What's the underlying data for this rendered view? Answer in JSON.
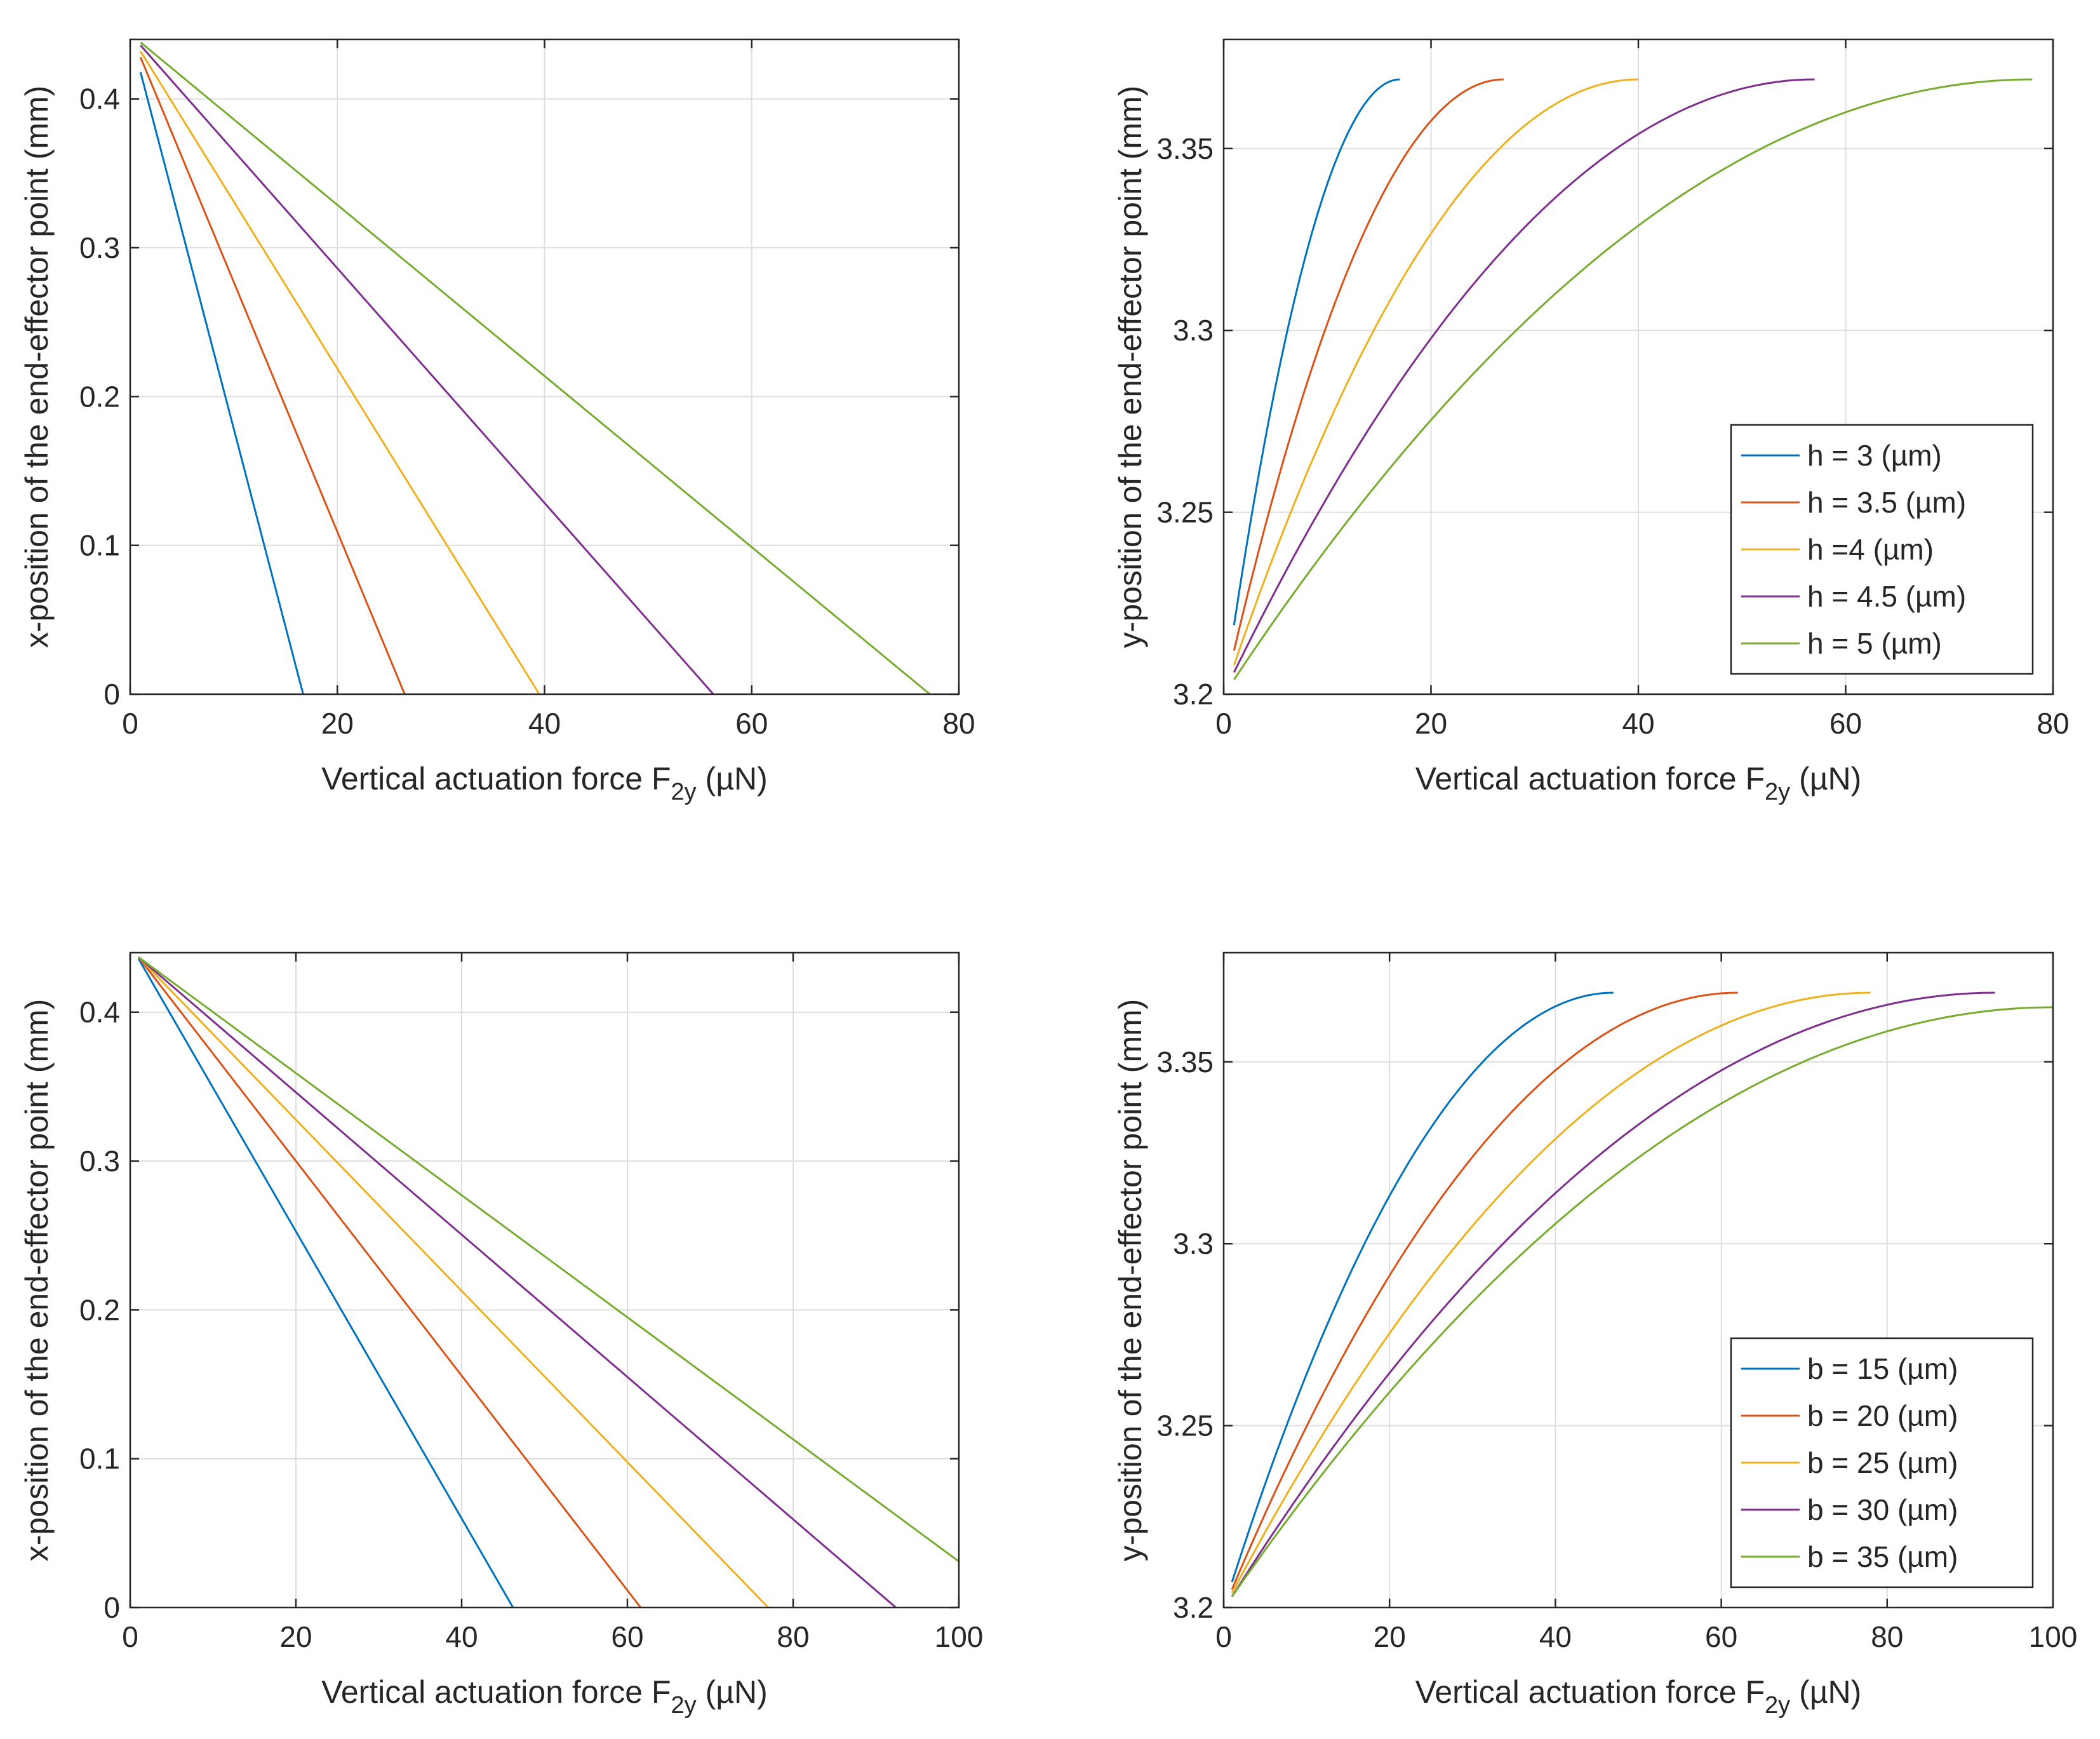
{
  "chart_data": [
    {
      "type": "line",
      "xlabel": "Vertical actuation force F",
      "xlabel_sub": "2y",
      "xlabel_unit": "(µN)",
      "ylabel": "x-position of the end-effector point (mm)",
      "xlim": [
        0,
        80
      ],
      "ylim": [
        0,
        0.44
      ],
      "xticks": [
        0,
        20,
        40,
        60,
        80
      ],
      "yticks": [
        0,
        0.1,
        0.2,
        0.3,
        0.4
      ],
      "xtick_labels": [
        "0",
        "20",
        "40",
        "60",
        "80"
      ],
      "ytick_labels": [
        "0",
        "0.1",
        "0.2",
        "0.3",
        "0.4"
      ],
      "grid": true,
      "legend": null,
      "series": [
        {
          "name": "h = 3 (µm)",
          "color": "#0072BD",
          "x": [
            1,
            16.7
          ],
          "y": [
            0.418,
            0
          ],
          "shape": "linear"
        },
        {
          "name": "h = 3.5 (µm)",
          "color": "#D95319",
          "x": [
            1,
            26.5
          ],
          "y": [
            0.428,
            0
          ],
          "shape": "linear"
        },
        {
          "name": "h =4 (µm)",
          "color": "#EDB120",
          "x": [
            1,
            39.5
          ],
          "y": [
            0.432,
            0
          ],
          "shape": "linear"
        },
        {
          "name": "h = 4.5 (µm)",
          "color": "#7E2F8E",
          "x": [
            1,
            56.3
          ],
          "y": [
            0.436,
            0
          ],
          "shape": "linear"
        },
        {
          "name": "h = 5 (µm)",
          "color": "#77AC30",
          "x": [
            1,
            77.2
          ],
          "y": [
            0.438,
            0
          ],
          "shape": "linear"
        }
      ]
    },
    {
      "type": "line",
      "xlabel": "Vertical actuation force F",
      "xlabel_sub": "2y",
      "xlabel_unit": "(µN)",
      "ylabel": "y-position of the end-effector point (mm)",
      "xlim": [
        0,
        80
      ],
      "ylim": [
        3.2,
        3.38
      ],
      "xticks": [
        0,
        20,
        40,
        60,
        80
      ],
      "yticks": [
        3.2,
        3.25,
        3.3,
        3.35
      ],
      "xtick_labels": [
        "0",
        "20",
        "40",
        "60",
        "80"
      ],
      "ytick_labels": [
        "3.2",
        "3.25",
        "3.3",
        "3.35"
      ],
      "grid": true,
      "legend": "bottom-right",
      "series": [
        {
          "name": "h = 3 (µm)",
          "color": "#0072BD",
          "x": [
            1,
            17
          ],
          "y": [
            3.219,
            3.369
          ],
          "shape": "concave"
        },
        {
          "name": "h = 3.5 (µm)",
          "color": "#D95319",
          "x": [
            1,
            27
          ],
          "y": [
            3.212,
            3.369
          ],
          "shape": "concave"
        },
        {
          "name": "h =4 (µm)",
          "color": "#EDB120",
          "x": [
            1,
            40
          ],
          "y": [
            3.208,
            3.369
          ],
          "shape": "concave"
        },
        {
          "name": "h = 4.5 (µm)",
          "color": "#7E2F8E",
          "x": [
            1,
            57
          ],
          "y": [
            3.206,
            3.369
          ],
          "shape": "concave"
        },
        {
          "name": "h = 5 (µm)",
          "color": "#77AC30",
          "x": [
            1,
            78
          ],
          "y": [
            3.204,
            3.369
          ],
          "shape": "concave"
        }
      ]
    },
    {
      "type": "line",
      "xlabel": "Vertical actuation force F",
      "xlabel_sub": "2y",
      "xlabel_unit": "(µN)",
      "ylabel": "x-position of the end-effector point (mm)",
      "xlim": [
        0,
        100
      ],
      "ylim": [
        0,
        0.44
      ],
      "xticks": [
        0,
        20,
        40,
        60,
        80,
        100
      ],
      "yticks": [
        0,
        0.1,
        0.2,
        0.3,
        0.4
      ],
      "xtick_labels": [
        "0",
        "20",
        "40",
        "60",
        "80",
        "100"
      ],
      "ytick_labels": [
        "0",
        "0.1",
        "0.2",
        "0.3",
        "0.4"
      ],
      "grid": true,
      "legend": null,
      "series": [
        {
          "name": "b = 15 (µm)",
          "color": "#0072BD",
          "x": [
            1,
            46.2
          ],
          "y": [
            0.436,
            0
          ],
          "shape": "linear"
        },
        {
          "name": "b = 20 (µm)",
          "color": "#D95319",
          "x": [
            1,
            61.6
          ],
          "y": [
            0.437,
            0
          ],
          "shape": "linear"
        },
        {
          "name": "b = 25 (µm)",
          "color": "#EDB120",
          "x": [
            1,
            77
          ],
          "y": [
            0.437,
            0
          ],
          "shape": "linear"
        },
        {
          "name": "b = 30 (µm)",
          "color": "#7E2F8E",
          "x": [
            1,
            92.4
          ],
          "y": [
            0.437,
            0
          ],
          "shape": "linear"
        },
        {
          "name": "b = 35 (µm)",
          "color": "#77AC30",
          "x": [
            1,
            100
          ],
          "y": [
            0.437,
            0.031
          ],
          "shape": "linear"
        }
      ]
    },
    {
      "type": "line",
      "xlabel": "Vertical actuation force F",
      "xlabel_sub": "2y",
      "xlabel_unit": "(µN)",
      "ylabel": "y-position of the end-effector point (mm)",
      "xlim": [
        0,
        100
      ],
      "ylim": [
        3.2,
        3.38
      ],
      "xticks": [
        0,
        20,
        40,
        60,
        80,
        100
      ],
      "yticks": [
        3.2,
        3.25,
        3.3,
        3.35
      ],
      "xtick_labels": [
        "0",
        "20",
        "40",
        "60",
        "80",
        "100"
      ],
      "ytick_labels": [
        "3.2",
        "3.25",
        "3.3",
        "3.35"
      ],
      "grid": true,
      "legend": "bottom-right",
      "series": [
        {
          "name": "b = 15 (µm)",
          "color": "#0072BD",
          "x": [
            1,
            47
          ],
          "y": [
            3.207,
            3.369
          ],
          "shape": "concave"
        },
        {
          "name": "b = 20 (µm)",
          "color": "#D95319",
          "x": [
            1,
            62
          ],
          "y": [
            3.205,
            3.369
          ],
          "shape": "concave"
        },
        {
          "name": "b = 25 (µm)",
          "color": "#EDB120",
          "x": [
            1,
            78
          ],
          "y": [
            3.204,
            3.369
          ],
          "shape": "concave"
        },
        {
          "name": "b = 30 (µm)",
          "color": "#7E2F8E",
          "x": [
            1,
            93
          ],
          "y": [
            3.203,
            3.369
          ],
          "shape": "concave"
        },
        {
          "name": "b = 35 (µm)",
          "color": "#77AC30",
          "x": [
            1,
            100
          ],
          "y": [
            3.203,
            3.365
          ],
          "shape": "concave"
        }
      ]
    }
  ]
}
